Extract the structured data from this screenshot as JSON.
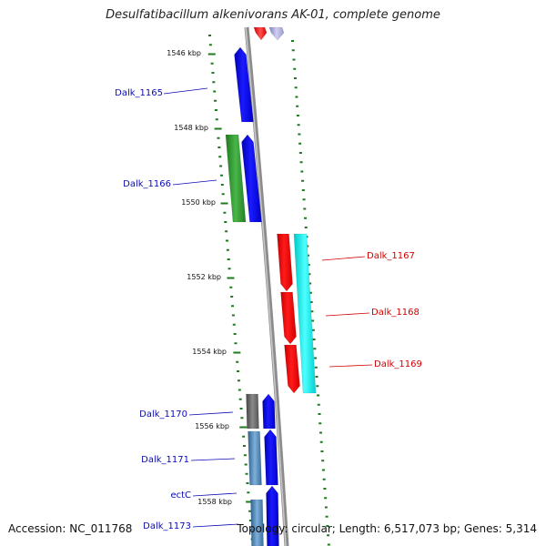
{
  "title": "Desulfatibacillum alkenivorans AK-01, complete genome",
  "footer": {
    "accession": "Accession: NC_011768",
    "summary": "Topology: circular; Length: 6,517,073 bp; Genes: 5,314"
  },
  "colors": {
    "backbone": "#8c8c8c",
    "scale_ticks": "#1e7a1e",
    "label_forward": "#0a0ab4",
    "label_reverse": "#d00000",
    "gene_blue": "#0000ee",
    "gene_green": "#2e9a2e",
    "gene_red": "#ee0000",
    "gene_cyan": "#00e6e6",
    "gene_gray": "#666666",
    "gene_steelblue": "#4682b4"
  },
  "scale": {
    "unit": "kbp",
    "major_ticks": [
      "1546 kbp",
      "1548 kbp",
      "1550 kbp",
      "1552 kbp",
      "1554 kbp",
      "1556 kbp",
      "1558 kbp"
    ]
  },
  "genes": [
    {
      "id": "Dalk_1165",
      "strand": "forward",
      "color": "gene_blue",
      "label_color": "label_forward"
    },
    {
      "id": "Dalk_1166",
      "strand": "forward",
      "color": "gene_green",
      "label_color": "label_forward"
    },
    {
      "id": "Dalk_1167",
      "strand": "reverse",
      "color": "gene_red",
      "label_color": "label_reverse"
    },
    {
      "id": "Dalk_1168",
      "strand": "reverse",
      "color": "gene_red",
      "label_color": "label_reverse"
    },
    {
      "id": "Dalk_1169",
      "strand": "reverse",
      "color": "gene_red",
      "label_color": "label_reverse"
    },
    {
      "id": "Dalk_1170",
      "strand": "forward",
      "color": "gene_gray",
      "label_color": "label_forward"
    },
    {
      "id": "Dalk_1171",
      "strand": "forward",
      "color": "gene_steelblue",
      "label_color": "label_forward"
    },
    {
      "id": "ectC",
      "strand": "forward",
      "color": "gene_blue",
      "label_color": "label_forward"
    },
    {
      "id": "Dalk_1173",
      "strand": "forward",
      "color": "gene_blue",
      "label_color": "label_forward"
    }
  ]
}
